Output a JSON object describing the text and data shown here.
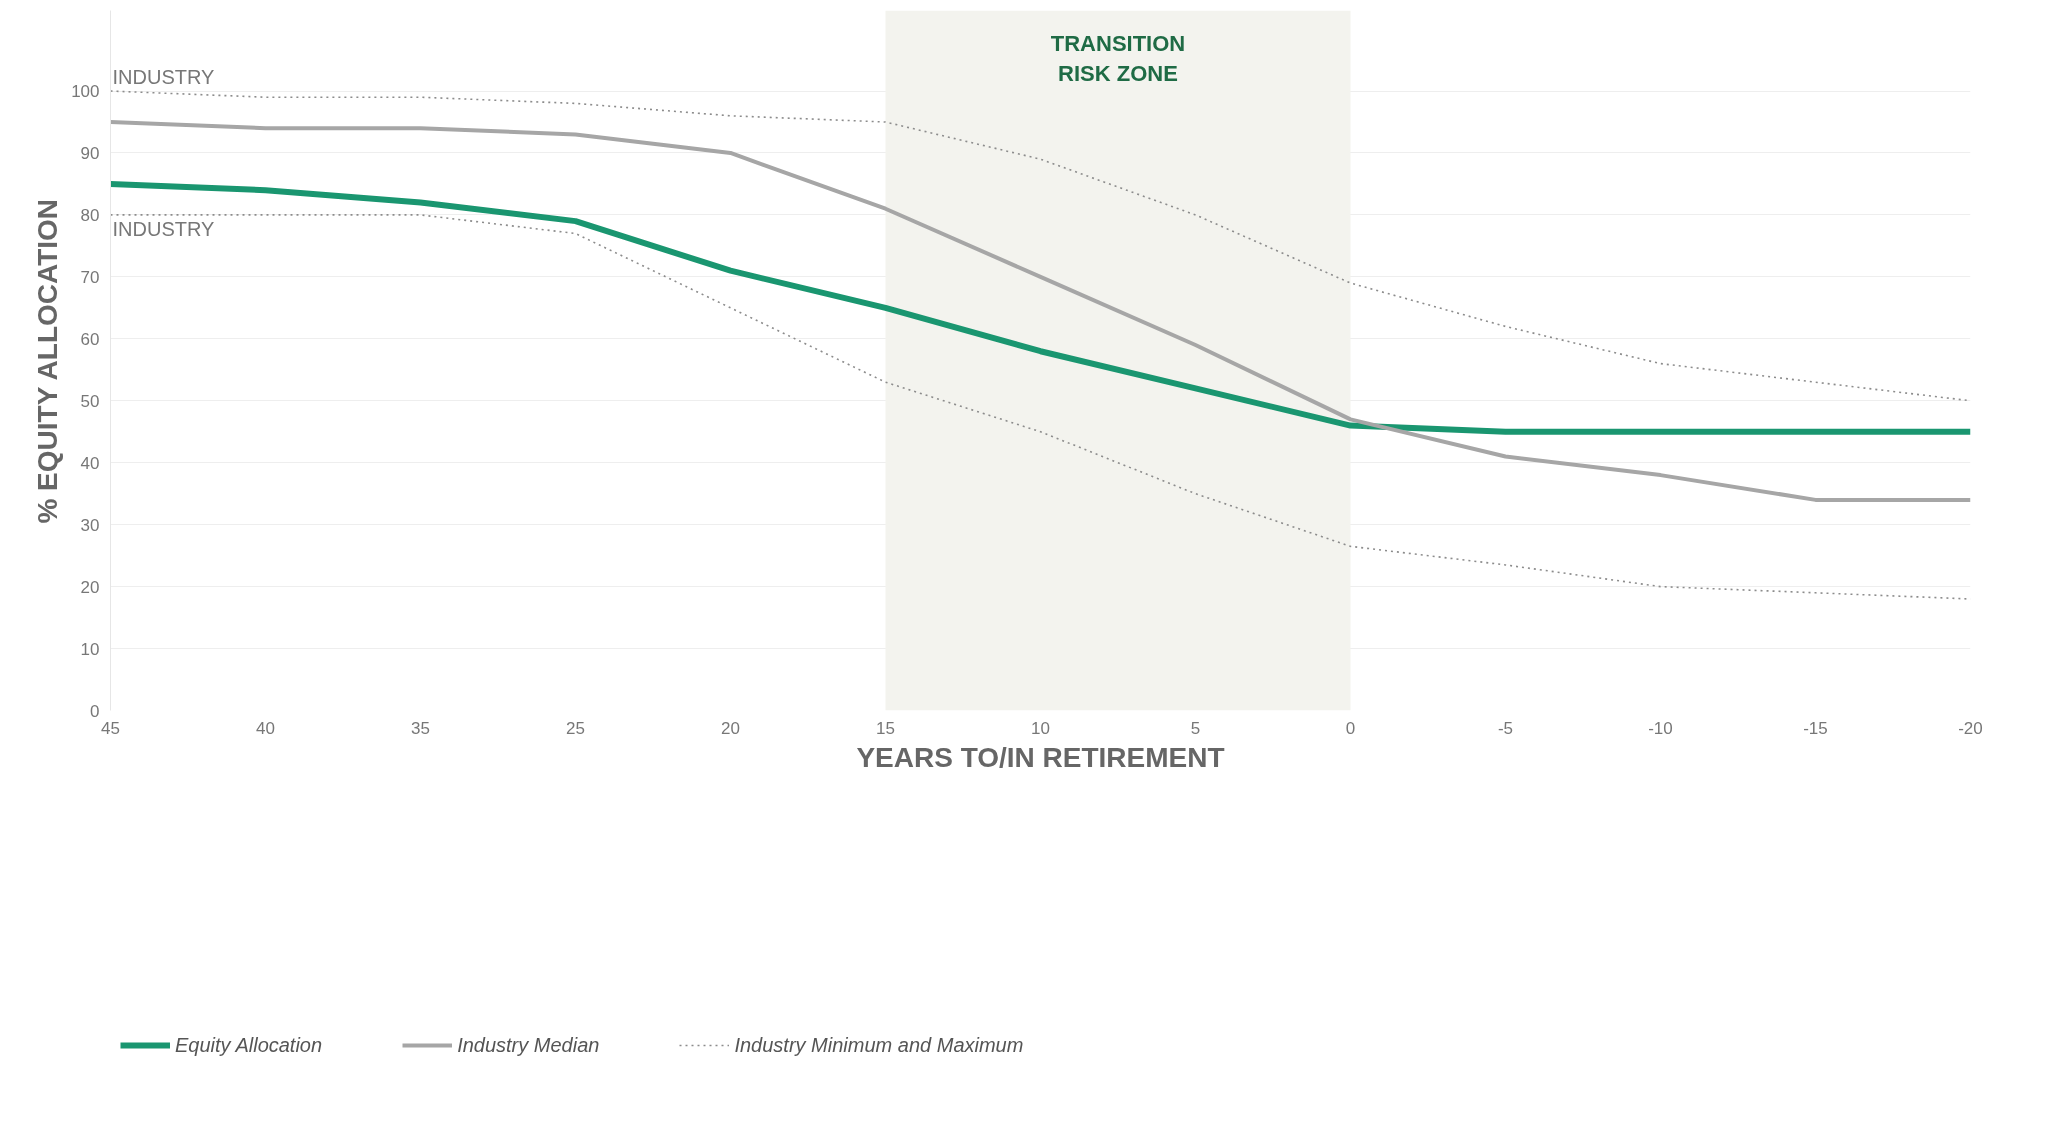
{
  "chart_data": {
    "type": "line",
    "xlabel": "YEARS TO/IN RETIREMENT",
    "ylabel": "% EQUITY ALLOCATION",
    "categories": [
      "45",
      "40",
      "35",
      "25",
      "20",
      "15",
      "10",
      "5",
      "0",
      "-5",
      "-10",
      "-15",
      "-20"
    ],
    "series": [
      {
        "name": "Equity Allocation",
        "color": "#1a9670",
        "line_style": "solid",
        "values": [
          85,
          84,
          82,
          79,
          71,
          65,
          58,
          52,
          46,
          45,
          45,
          45,
          45
        ]
      },
      {
        "name": "Industry Median",
        "color": "#a6a6a6",
        "line_style": "solid",
        "values": [
          95,
          94,
          94,
          93,
          90,
          81,
          70,
          59,
          47,
          41,
          38,
          34,
          34
        ]
      },
      {
        "name": "Industry Minimum and Maximum",
        "color": "#8c8c8c",
        "line_style": "dotted",
        "values": [
          100,
          99,
          99,
          98,
          96,
          95,
          89,
          80,
          69,
          62,
          56,
          53,
          50
        ]
      },
      {
        "color": "#8c8c8c",
        "line_style": "dotted",
        "values": [
          80,
          80,
          80,
          77,
          65,
          53,
          45,
          35,
          26.5,
          23.5,
          20,
          19,
          18
        ]
      }
    ],
    "ylim": [
      0,
      113
    ],
    "yticks": [
      0,
      10,
      20,
      30,
      40,
      50,
      60,
      70,
      80,
      90,
      100
    ],
    "grid": "y",
    "legend": "bottom",
    "marker": "none",
    "bands": [
      {
        "axis": "x",
        "from": "15",
        "to": "0",
        "label": "TRANSITION\nRISK ZONE",
        "color": "#f3f3ee"
      }
    ],
    "annotations": [
      {
        "text": "INDUSTRY",
        "x": "45",
        "y": 100
      },
      {
        "text": "INDUSTRY",
        "x": "45",
        "y": 80
      }
    ]
  }
}
